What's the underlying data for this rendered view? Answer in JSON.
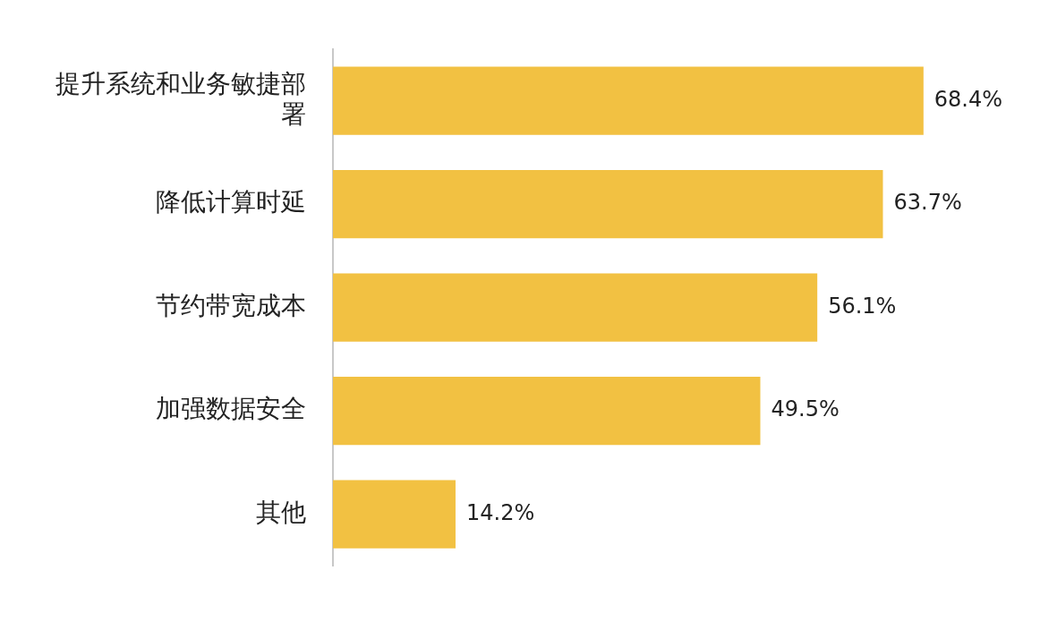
{
  "chart_data": {
    "type": "bar",
    "orientation": "horizontal",
    "categories": [
      "提升系统和业务敏捷部署",
      "降低计算时延",
      "节约带宽成本",
      "加强数据安全",
      "其他"
    ],
    "values": [
      68.4,
      63.7,
      56.1,
      49.5,
      14.2
    ],
    "color": "#f2c142",
    "value_labels": [
      "68.4%",
      "63.7%",
      "56.1%",
      "49.5%",
      "14.2%"
    ],
    "legend": false,
    "tick_labels": "y"
  }
}
